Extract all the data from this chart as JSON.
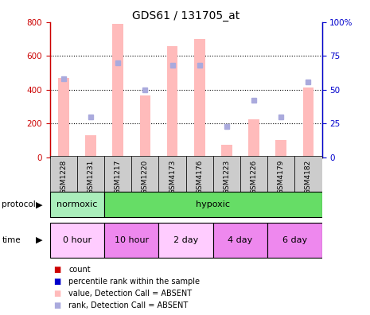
{
  "title": "GDS61 / 131705_at",
  "samples": [
    "GSM1228",
    "GSM1231",
    "GSM1217",
    "GSM1220",
    "GSM4173",
    "GSM4176",
    "GSM1223",
    "GSM1226",
    "GSM4179",
    "GSM4182"
  ],
  "bar_values": [
    470,
    130,
    790,
    365,
    660,
    700,
    75,
    225,
    105,
    415
  ],
  "rank_values": [
    58,
    30,
    70,
    50,
    68,
    68,
    23,
    42,
    30,
    56
  ],
  "bar_color": "#ffbbbb",
  "rank_color": "#aaaadd",
  "ylim_left": [
    0,
    800
  ],
  "ylim_right": [
    0,
    100
  ],
  "yticks_left": [
    0,
    200,
    400,
    600,
    800
  ],
  "yticks_right": [
    0,
    25,
    50,
    75,
    100
  ],
  "yticklabels_right": [
    "0",
    "25",
    "50",
    "75",
    "100%"
  ],
  "left_axis_color": "#cc0000",
  "right_axis_color": "#0000cc",
  "grid_color": "#000000",
  "sample_bg": "#cccccc",
  "protocol_bg": "#66dd66",
  "normoxic_bg": "#aaeebb",
  "time_color_light": "#ffccff",
  "time_color_dark": "#ee88ee",
  "bar_width": 0.4,
  "rank_marker_size": 5
}
